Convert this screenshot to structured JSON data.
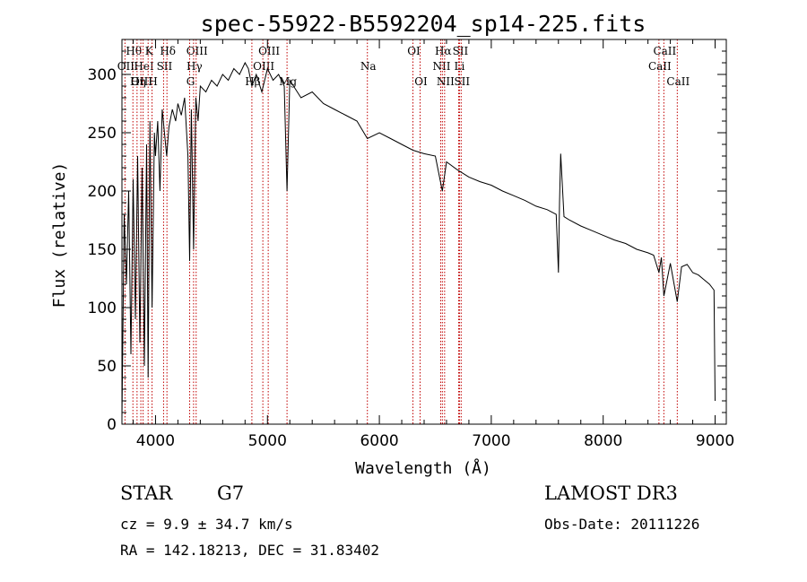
{
  "chart_data": {
    "type": "line",
    "title": "spec-55922-B5592204_sp14-225.fits",
    "xlabel": "Wavelength (Å)",
    "ylabel": "Flux (relative)",
    "xlim": [
      3700,
      9100
    ],
    "ylim": [
      0,
      330
    ],
    "xticks": [
      4000,
      5000,
      6000,
      7000,
      8000,
      9000
    ],
    "yticks": [
      0,
      50,
      100,
      150,
      200,
      250,
      300
    ],
    "grid": false,
    "spectral_lines": [
      {
        "name": "Hθ",
        "wavelength": 3798,
        "row": 0
      },
      {
        "name": "OII",
        "wavelength": 3727,
        "row": 1
      },
      {
        "name": "OIII",
        "wavelength": 3869,
        "row": 2
      },
      {
        "name": "Hη",
        "wavelength": 3835,
        "row": 2
      },
      {
        "name": "HeI",
        "wavelength": 3889,
        "row": 1
      },
      {
        "name": "K",
        "wavelength": 3934,
        "row": 0
      },
      {
        "name": "H",
        "wavelength": 3969,
        "row": 2
      },
      {
        "name": "SII",
        "wavelength": 4072,
        "row": 1
      },
      {
        "name": "Hδ",
        "wavelength": 4102,
        "row": 0
      },
      {
        "name": "OIII",
        "wavelength": 4363,
        "row": 0
      },
      {
        "name": "Hγ",
        "wavelength": 4340,
        "row": 1
      },
      {
        "name": "G",
        "wavelength": 4305,
        "row": 2
      },
      {
        "name": "Hβ",
        "wavelength": 4861,
        "row": 2
      },
      {
        "name": "OIII",
        "wavelength": 4959,
        "row": 1
      },
      {
        "name": "OIII",
        "wavelength": 5007,
        "row": 0
      },
      {
        "name": "Mg",
        "wavelength": 5175,
        "row": 2
      },
      {
        "name": "Na",
        "wavelength": 5893,
        "row": 1
      },
      {
        "name": "OI",
        "wavelength": 6300,
        "row": 0
      },
      {
        "name": "OI",
        "wavelength": 6364,
        "row": 2
      },
      {
        "name": "NII",
        "wavelength": 6548,
        "row": 1
      },
      {
        "name": "Hα",
        "wavelength": 6563,
        "row": 0
      },
      {
        "name": "NII",
        "wavelength": 6583,
        "row": 2
      },
      {
        "name": "Li",
        "wavelength": 6708,
        "row": 1
      },
      {
        "name": "SII",
        "wavelength": 6716,
        "row": 0
      },
      {
        "name": "SII",
        "wavelength": 6731,
        "row": 2
      },
      {
        "name": "CaII",
        "wavelength": 8498,
        "row": 1
      },
      {
        "name": "CaII",
        "wavelength": 8542,
        "row": 0
      },
      {
        "name": "CaII",
        "wavelength": 8662,
        "row": 2
      }
    ],
    "series": [
      {
        "name": "flux",
        "x": [
          3700,
          3720,
          3740,
          3760,
          3780,
          3800,
          3820,
          3840,
          3860,
          3880,
          3900,
          3920,
          3934,
          3950,
          3969,
          3990,
          4000,
          4020,
          4040,
          4060,
          4080,
          4100,
          4120,
          4150,
          4180,
          4200,
          4230,
          4260,
          4290,
          4305,
          4320,
          4340,
          4360,
          4380,
          4400,
          4450,
          4500,
          4550,
          4600,
          4650,
          4700,
          4750,
          4800,
          4830,
          4861,
          4900,
          4950,
          5000,
          5050,
          5100,
          5150,
          5175,
          5200,
          5300,
          5400,
          5500,
          5600,
          5700,
          5800,
          5893,
          6000,
          6100,
          6200,
          6300,
          6400,
          6500,
          6563,
          6600,
          6700,
          6800,
          6900,
          7000,
          7100,
          7200,
          7300,
          7400,
          7500,
          7580,
          7600,
          7610,
          7620,
          7650,
          7700,
          7800,
          7900,
          8000,
          8100,
          8200,
          8300,
          8400,
          8450,
          8498,
          8520,
          8542,
          8600,
          8662,
          8700,
          8750,
          8800,
          8850,
          8900,
          8950,
          8990,
          9000
        ],
        "y": [
          5,
          180,
          120,
          200,
          60,
          210,
          90,
          230,
          70,
          220,
          50,
          240,
          40,
          260,
          100,
          250,
          230,
          260,
          200,
          270,
          250,
          230,
          255,
          270,
          260,
          275,
          265,
          280,
          230,
          140,
          270,
          150,
          280,
          260,
          290,
          285,
          295,
          290,
          300,
          295,
          305,
          300,
          310,
          305,
          290,
          300,
          285,
          305,
          295,
          300,
          290,
          200,
          295,
          280,
          285,
          275,
          270,
          265,
          260,
          245,
          250,
          245,
          240,
          235,
          232,
          230,
          200,
          225,
          218,
          212,
          208,
          205,
          200,
          196,
          192,
          187,
          184,
          180,
          130,
          190,
          232,
          178,
          175,
          170,
          166,
          162,
          158,
          155,
          150,
          147,
          145,
          130,
          143,
          110,
          138,
          105,
          135,
          137,
          130,
          128,
          124,
          120,
          115,
          20
        ]
      }
    ]
  },
  "info": {
    "object_class": "STAR",
    "subclass": "G7",
    "survey": "LAMOST DR3",
    "redshift_text": "cz = 9.9 ± 34.7 km/s",
    "obs_date_text": "Obs-Date: 20111226",
    "coords_text": "RA = 142.18213, DEC =  31.83402"
  }
}
